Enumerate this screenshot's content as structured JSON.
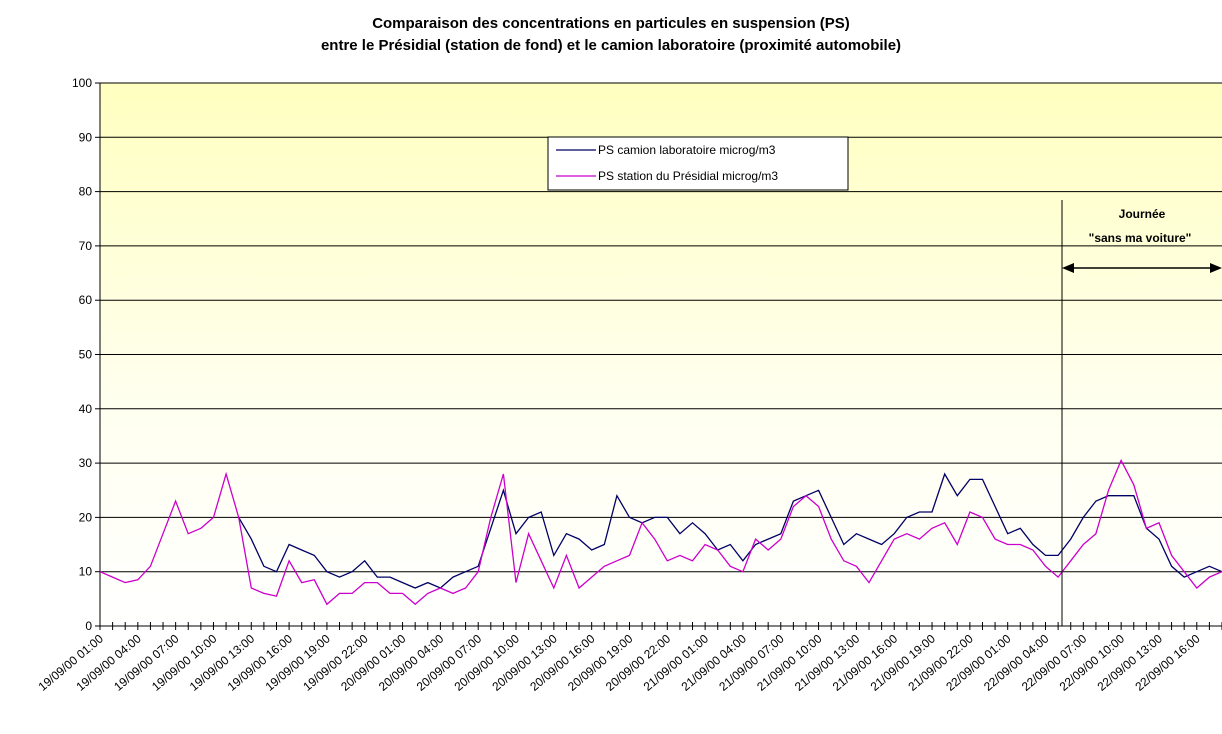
{
  "chart_data": {
    "type": "line",
    "title": "Comparaison des concentrations en particules en suspension (PS)",
    "subtitle": "entre le Présidial (station de fond) et le camion laboratoire (proximité automobile)",
    "categories": [
      "19/09/00 01:00",
      null,
      null,
      "19/09/00 04:00",
      null,
      null,
      "19/09/00 07:00",
      null,
      null,
      "19/09/00 10:00",
      null,
      null,
      "19/09/00 13:00",
      null,
      null,
      "19/09/00 16:00",
      null,
      null,
      "19/09/00 19:00",
      null,
      null,
      "19/09/00 22:00",
      null,
      null,
      "20/09/00 01:00",
      null,
      null,
      "20/09/00 04:00",
      null,
      null,
      "20/09/00 07:00",
      null,
      null,
      "20/09/00 10:00",
      null,
      null,
      "20/09/00 13:00",
      null,
      null,
      "20/09/00 16:00",
      null,
      null,
      "20/09/00 19:00",
      null,
      null,
      "20/09/00 22:00",
      null,
      null,
      "21/09/00 01:00",
      null,
      null,
      "21/09/00 04:00",
      null,
      null,
      "21/09/00 07:00",
      null,
      null,
      "21/09/00 10:00",
      null,
      null,
      "21/09/00 13:00",
      null,
      null,
      "21/09/00 16:00",
      null,
      null,
      "21/09/00 19:00",
      null,
      null,
      "21/09/00 22:00",
      null,
      null,
      "22/09/00 01:00",
      null,
      null,
      "22/09/00 04:00",
      null,
      null,
      "22/09/00 07:00",
      null,
      null,
      "22/09/00 10:00",
      null,
      null,
      "22/09/00 13:00",
      null,
      null,
      "22/09/00 16:00",
      null,
      null
    ],
    "series": [
      {
        "name": "PS camion laboratoire  microg/m3",
        "color": "#000066",
        "values": [
          null,
          null,
          null,
          null,
          null,
          null,
          null,
          null,
          null,
          null,
          null,
          20,
          16,
          11,
          10,
          15,
          14,
          13,
          10,
          9,
          10,
          12,
          9,
          9,
          8,
          7,
          8,
          7,
          9,
          10,
          11,
          18,
          25,
          17,
          20,
          21,
          13,
          17,
          16,
          14,
          15,
          24,
          20,
          19,
          20,
          20,
          17,
          19,
          17,
          14,
          15,
          12,
          15,
          16,
          17,
          23,
          24,
          25,
          20,
          15,
          17,
          16,
          15,
          17,
          20,
          21,
          21,
          28,
          24,
          27,
          27,
          22,
          17,
          18,
          15,
          13,
          13,
          16,
          20,
          23,
          24,
          24,
          24,
          18,
          16,
          11,
          9,
          10,
          11,
          10
        ]
      },
      {
        "name": "PS station du Présidial   microg/m3",
        "color": "#cc00cc",
        "values": [
          10,
          9,
          8,
          8.5,
          11,
          17,
          23,
          17,
          18,
          20,
          28,
          20,
          7,
          6,
          5.5,
          12,
          8,
          8.5,
          4,
          6,
          6,
          8,
          8,
          6,
          6,
          4,
          6,
          7,
          6,
          7,
          10,
          20,
          28,
          8,
          17,
          12,
          7,
          13,
          7,
          9,
          11,
          12,
          13,
          19,
          16,
          12,
          13,
          12,
          15,
          14,
          11,
          10,
          16,
          14,
          16,
          22,
          24,
          22,
          16,
          12,
          11,
          8,
          12,
          16,
          17,
          16,
          18,
          19,
          15,
          21,
          20,
          16,
          15,
          15,
          14,
          11,
          9,
          12,
          15,
          17,
          25,
          30.5,
          26,
          18,
          19,
          13,
          10,
          7,
          9,
          10
        ]
      }
    ],
    "ylim": [
      0,
      100
    ],
    "yticks": [
      0,
      10,
      20,
      30,
      40,
      50,
      60,
      70,
      80,
      90,
      100
    ],
    "grid": true,
    "annotations": [
      "Journée",
      "\"sans ma voiture\""
    ]
  }
}
